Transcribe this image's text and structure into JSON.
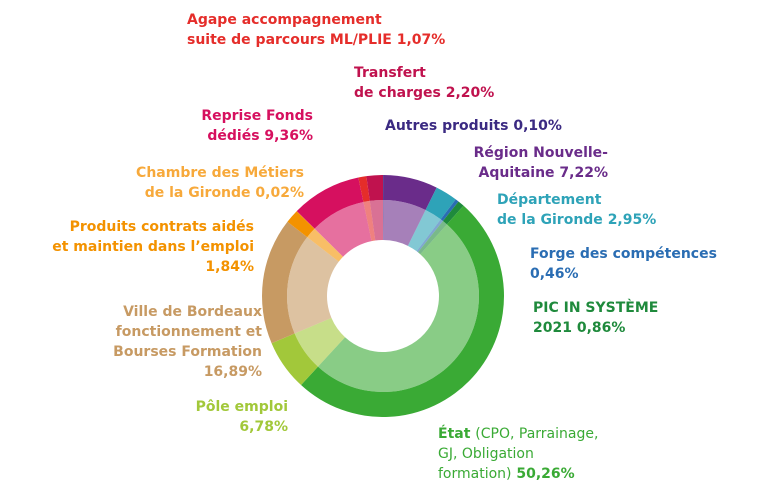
{
  "chart_data": {
    "type": "pie",
    "donut": true,
    "categories": [
      "Autres produits",
      "Région Nouvelle-\nAquitaine",
      "Département\nde la Gironde",
      "Forge des compétences",
      "PIC IN SYSTÈME\n2021",
      "État",
      "Pôle emploi",
      "Ville de Bordeaux\nfonctionnement et\nBourses Formation",
      "Produits contrats aidés\net maintien dans l’emploi",
      "Chambre des Métiers\nde la Gironde",
      "Reprise Fonds\ndédiés",
      "Agape accompagnement\nsuite de parcours ML/PLIE",
      "Transfert\nde charges"
    ],
    "details": {
      "5": "(CPO, Parrainage,\nGJ, Obligation\nformation)"
    },
    "values": [
      0.1,
      7.22,
      2.95,
      0.46,
      0.86,
      50.26,
      6.78,
      16.89,
      1.84,
      0.02,
      9.36,
      1.07,
      2.2
    ],
    "value_labels": [
      "0,10%",
      "7,22%",
      "2,95%",
      "0,46%",
      "0,86%",
      "50,26%",
      "6,78%",
      "16,89%",
      "1,84%",
      "0,02%",
      "9,36%",
      "1,07%",
      "2,20%"
    ],
    "colors": [
      "#3b2a82",
      "#6a2c8a",
      "#2ea3b8",
      "#2a6db3",
      "#1f8a3c",
      "#3aaa35",
      "#a2c83a",
      "#c79a63",
      "#f39200",
      "#f7a93b",
      "#d6105f",
      "#e52d2a",
      "#c0124e"
    ]
  }
}
